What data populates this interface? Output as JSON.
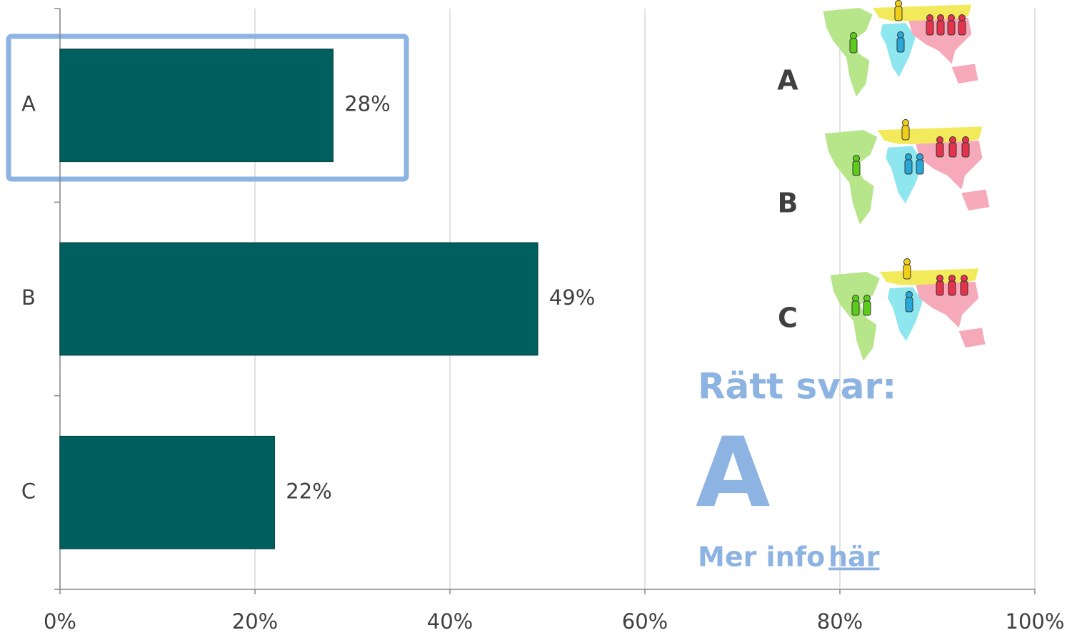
{
  "chart_data": {
    "type": "hbar",
    "categories": [
      "A",
      "B",
      "C"
    ],
    "values": [
      28,
      49,
      22
    ],
    "value_labels": [
      "28%",
      "49%",
      "22%"
    ],
    "color": "#006060",
    "xlim": [
      0,
      100
    ],
    "xticks": [
      {
        "value": 0,
        "label": "0%"
      },
      {
        "value": 20,
        "label": "20%"
      },
      {
        "value": 40,
        "label": "40%"
      },
      {
        "value": 60,
        "label": "60%"
      },
      {
        "value": 80,
        "label": "80%"
      },
      {
        "value": 100,
        "label": "100%"
      }
    ],
    "grid": true,
    "map_labels": [
      "A",
      "B",
      "C"
    ],
    "annotations": [
      "Rätt svar:",
      "A",
      "Mer info",
      "här"
    ]
  }
}
